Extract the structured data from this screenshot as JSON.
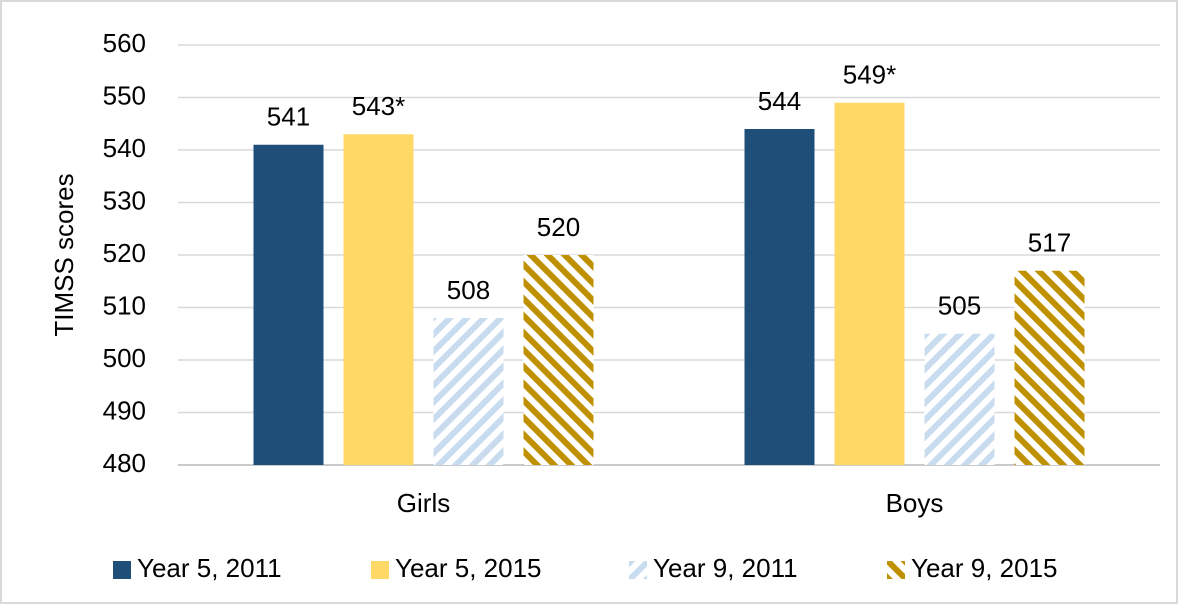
{
  "chart_data": {
    "type": "bar",
    "categories": [
      "Girls",
      "Boys"
    ],
    "y_label": "TIMSS scores",
    "ylim": [
      480,
      560
    ],
    "yticks": [
      480,
      490,
      500,
      510,
      520,
      530,
      540,
      550,
      560
    ],
    "grid": true,
    "legend": "bottom",
    "series": [
      {
        "name": "Year 5, 2011",
        "color": "#1f4e79",
        "values": [
          541,
          544
        ]
      },
      {
        "name": "Year 5, 2015",
        "color": "#ffd966",
        "values": [
          543,
          549
        ],
        "value_labels": [
          "543*",
          "549*"
        ]
      },
      {
        "name": "Year 9, 2011",
        "color": "#c9dcef",
        "hatch": "/",
        "values": [
          508,
          505
        ]
      },
      {
        "name": "Year 9, 2015",
        "color": "#bf9000",
        "hatch": "\\",
        "values": [
          520,
          517
        ]
      }
    ]
  }
}
